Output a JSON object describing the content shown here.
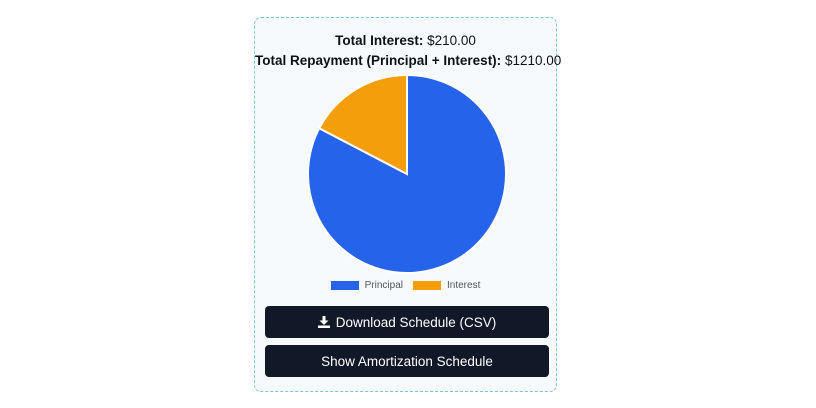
{
  "summary": {
    "interest_label": "Total Interest:",
    "interest_value": "$210.00",
    "repayment_label": "Total Repayment (Principal + Interest):",
    "repayment_value": "$1210.00"
  },
  "chart_data": {
    "type": "pie",
    "categories": [
      "Principal",
      "Interest"
    ],
    "values": [
      1000,
      210
    ],
    "colors": [
      "#2563eb",
      "#f59e0b"
    ],
    "legend": "bottom"
  },
  "buttons": {
    "download_label": "Download Schedule (CSV)",
    "download_icon": "download-icon",
    "schedule_label": "Show Amortization Schedule"
  }
}
